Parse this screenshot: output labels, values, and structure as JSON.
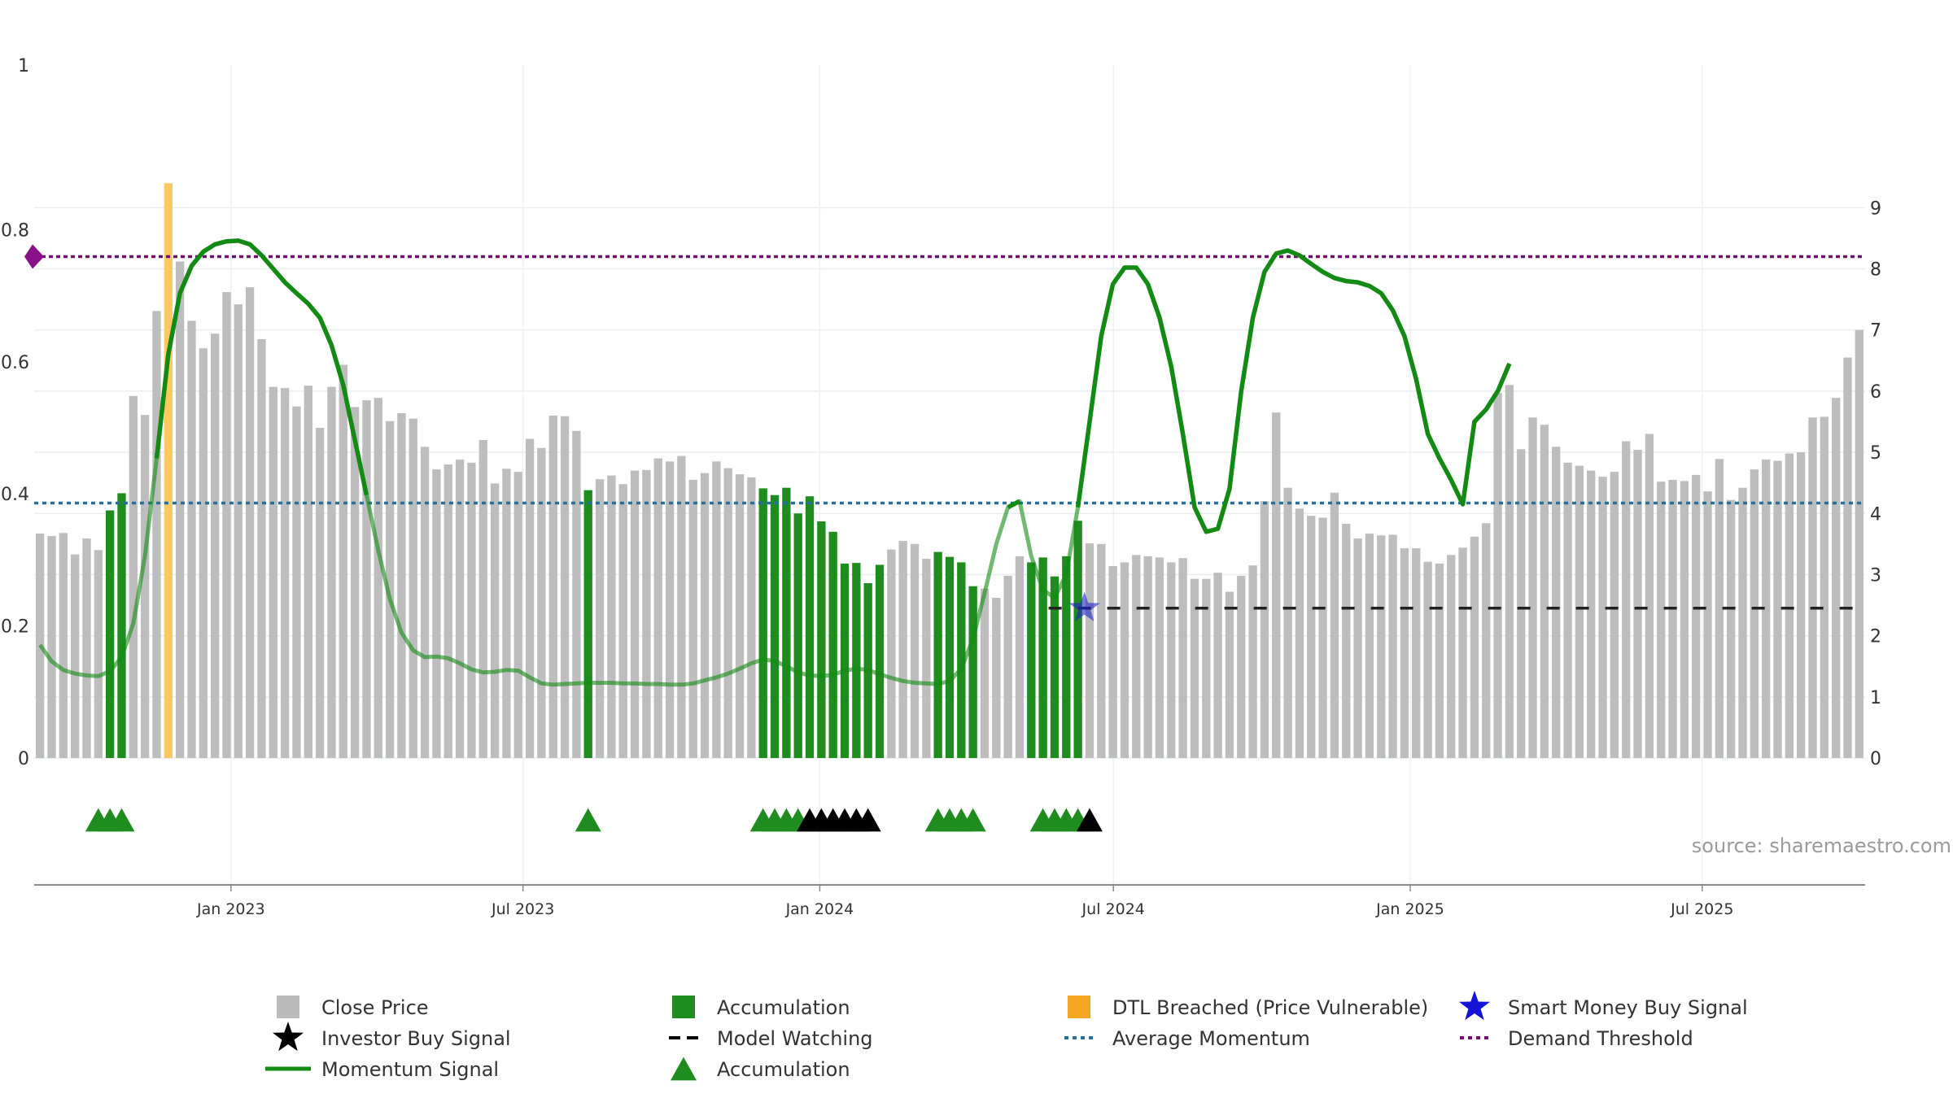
{
  "chart_data": {
    "type": "bar",
    "source_label": "source: sharemaestro.com",
    "left_axis": {
      "ticks": [
        "0",
        "0.2",
        "0.4",
        "0.6",
        "0.8",
        "1"
      ],
      "ylim": [
        0,
        1
      ],
      "hidden_ticks": [
        "0.8"
      ]
    },
    "right_axis": {
      "ticks": [
        "0",
        "1",
        "2",
        "3",
        "4",
        "5",
        "6",
        "7",
        "8",
        "9"
      ],
      "ylim": [
        0,
        10.8
      ]
    },
    "x_axis": {
      "start": "2022-09-01",
      "end": "2025-10-10",
      "ticks": [
        {
          "date": "2023-01-01",
          "label": "Jan 2023"
        },
        {
          "date": "2023-07-01",
          "label": "Jul 2023"
        },
        {
          "date": "2024-01-01",
          "label": "Jan 2024"
        },
        {
          "date": "2024-07-01",
          "label": "Jul 2024"
        },
        {
          "date": "2025-01-01",
          "label": "Jan 2025"
        },
        {
          "date": "2025-07-01",
          "label": "Jul 2025"
        }
      ]
    },
    "close_price": [
      3.67,
      3.63,
      3.68,
      3.33,
      3.59,
      3.4,
      4.05,
      4.33,
      5.92,
      5.61,
      7.31,
      9.4,
      8.12,
      7.15,
      6.7,
      6.94,
      7.62,
      7.42,
      7.7,
      6.85,
      6.07,
      6.05,
      5.75,
      6.09,
      5.4,
      6.07,
      6.43,
      5.74,
      5.85,
      5.89,
      5.51,
      5.64,
      5.55,
      5.09,
      4.72,
      4.8,
      4.88,
      4.83,
      5.2,
      4.49,
      4.73,
      4.68,
      5.22,
      5.07,
      5.6,
      5.59,
      5.35,
      4.38,
      4.56,
      4.62,
      4.48,
      4.7,
      4.71,
      4.9,
      4.85,
      4.94,
      4.55,
      4.66,
      4.85,
      4.74,
      4.64,
      4.59,
      4.41,
      4.3,
      4.42,
      4.0,
      4.28,
      3.87,
      3.7,
      3.18,
      3.19,
      2.86,
      3.16,
      3.41,
      3.55,
      3.5,
      3.26,
      3.37,
      3.29,
      3.2,
      2.81,
      2.77,
      2.62,
      2.98,
      3.3,
      3.2,
      3.28,
      2.97,
      3.3,
      3.88,
      3.51,
      3.5,
      3.14,
      3.2,
      3.32,
      3.3,
      3.28,
      3.2,
      3.27,
      2.93,
      2.93,
      3.03,
      2.72,
      2.98,
      3.15,
      4.2,
      5.65,
      4.42,
      4.08,
      3.96,
      3.93,
      4.34,
      3.83,
      3.59,
      3.67,
      3.64,
      3.65,
      3.43,
      3.43,
      3.21,
      3.18,
      3.32,
      3.44,
      3.62,
      3.84,
      5.97,
      6.1,
      5.05,
      5.57,
      5.45,
      5.09,
      4.83,
      4.78,
      4.7,
      4.6,
      4.68,
      5.18,
      5.04,
      5.3,
      4.52,
      4.55,
      4.53,
      4.63,
      4.36,
      4.89,
      4.22,
      4.42,
      4.72,
      4.88,
      4.86,
      4.98,
      5.0,
      5.57,
      5.58,
      5.89,
      6.55,
      7.0
    ],
    "accumulation_bars": [
      6,
      7,
      47,
      62,
      63,
      64,
      65,
      66,
      67,
      68,
      69,
      70,
      71,
      72,
      77,
      78,
      79,
      80,
      85,
      86,
      87,
      88,
      89
    ],
    "dtl_breached_bars": [
      11
    ],
    "momentum_signal": [
      1.85,
      1.58,
      1.44,
      1.38,
      1.35,
      1.34,
      1.42,
      1.65,
      2.2,
      3.3,
      4.9,
      6.6,
      7.6,
      8.05,
      8.28,
      8.4,
      8.45,
      8.46,
      8.4,
      8.22,
      8.0,
      7.78,
      7.6,
      7.43,
      7.2,
      6.75,
      6.1,
      5.2,
      4.3,
      3.4,
      2.6,
      2.05,
      1.76,
      1.65,
      1.66,
      1.63,
      1.55,
      1.45,
      1.4,
      1.41,
      1.44,
      1.43,
      1.32,
      1.22,
      1.2,
      1.21,
      1.22,
      1.23,
      1.23,
      1.23,
      1.22,
      1.22,
      1.21,
      1.21,
      1.2,
      1.2,
      1.22,
      1.27,
      1.32,
      1.38,
      1.46,
      1.55,
      1.61,
      1.59,
      1.5,
      1.4,
      1.35,
      1.34,
      1.36,
      1.43,
      1.46,
      1.44,
      1.37,
      1.31,
      1.26,
      1.23,
      1.22,
      1.21,
      1.26,
      1.46,
      1.95,
      2.7,
      3.5,
      4.1,
      4.2,
      3.3,
      2.75,
      2.62,
      3.0,
      4.1,
      5.5,
      6.9,
      7.75,
      8.02,
      8.02,
      7.75,
      7.2,
      6.4,
      5.3,
      4.1,
      3.7,
      3.75,
      4.4,
      6.0,
      7.2,
      7.95,
      8.25,
      8.3,
      8.22,
      8.08,
      7.95,
      7.85,
      7.8,
      7.78,
      7.72,
      7.6,
      7.32,
      6.9,
      6.2,
      5.3,
      4.9,
      4.55,
      4.15,
      5.5,
      5.7,
      6.0,
      6.45
    ],
    "average_momentum": 4.17,
    "demand_threshold": 8.2,
    "model_watching": {
      "level": 2.45,
      "from_bar": 89
    },
    "smart_money_buy_signal": {
      "bar": 89,
      "value": 2.45
    },
    "accumulation_markers": [
      5,
      6,
      7,
      47,
      62,
      63,
      64,
      65,
      77,
      78,
      79,
      80,
      86,
      87,
      88,
      89
    ],
    "investor_buy_markers": [
      66,
      67,
      68,
      69,
      70,
      71,
      90
    ],
    "colors": {
      "close_price": "#bdbdbd",
      "accumulation": "#1e8c1e",
      "dtl_breached": "#ffc861",
      "momentum": "#138a13",
      "average_momentum": "#2a6f97",
      "demand_threshold": "#6d0f6d",
      "smart_money": "#2222cc",
      "investor": "#000000",
      "model_watching": "#222222"
    },
    "legend": [
      {
        "key": "close_price",
        "label": "Close Price",
        "symbol": "square",
        "color": "#bbbbbb"
      },
      {
        "key": "accumulation_bar",
        "label": "Accumulation",
        "symbol": "square",
        "color": "#1e8c1e"
      },
      {
        "key": "dtl_breached",
        "label": "DTL Breached (Price Vulnerable)",
        "symbol": "square",
        "color": "#f5a623"
      },
      {
        "key": "smart_money",
        "label": "Smart Money Buy Signal",
        "symbol": "star",
        "color": "#1414d8"
      },
      {
        "key": "investor_buy",
        "label": "Investor Buy Signal",
        "symbol": "star",
        "color": "#000000"
      },
      {
        "key": "model_watching",
        "label": "Model Watching",
        "symbol": "dash",
        "color": "#000000"
      },
      {
        "key": "average_momentum",
        "label": "Average Momentum",
        "symbol": "dot",
        "color": "#2a6f97"
      },
      {
        "key": "demand_threshold",
        "label": "Demand Threshold",
        "symbol": "dot",
        "color": "#6d0f6d"
      },
      {
        "key": "momentum_signal",
        "label": "Momentum Signal",
        "symbol": "line",
        "color": "#138a13"
      },
      {
        "key": "accumulation_marker",
        "label": "Accumulation",
        "symbol": "triangle",
        "color": "#1e8c1e"
      }
    ]
  }
}
